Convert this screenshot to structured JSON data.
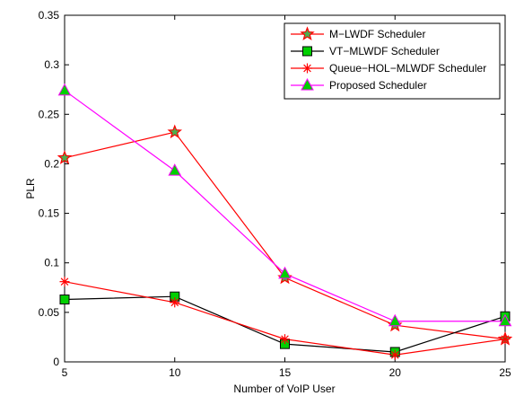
{
  "chart_data": {
    "type": "line",
    "title": "",
    "xlabel": "Number of VoIP User",
    "ylabel": "PLR",
    "x": [
      5,
      10,
      15,
      20,
      25
    ],
    "xlim": [
      5,
      25
    ],
    "ylim": [
      0,
      0.35
    ],
    "xticks": [
      "5",
      "10",
      "15",
      "20",
      "25"
    ],
    "yticks": [
      "0",
      "0.05",
      "0.1",
      "0.15",
      "0.2",
      "0.25",
      "0.3",
      "0.35"
    ],
    "grid": false,
    "legend_position": "top-right",
    "series": [
      {
        "name": "M−LWDF Scheduler",
        "values": [
          0.206,
          0.232,
          0.085,
          0.037,
          0.023
        ],
        "color": "#ff0000",
        "marker": "star",
        "marker_fill": "#4caf50"
      },
      {
        "name": "VT−MLWDF Scheduler",
        "values": [
          0.063,
          0.066,
          0.018,
          0.01,
          0.046
        ],
        "color": "#000000",
        "marker": "square",
        "marker_fill": "#00d000"
      },
      {
        "name": "Queue−HOL−MLWDF Scheduler",
        "values": [
          0.081,
          0.06,
          0.023,
          0.007,
          0.023
        ],
        "color": "#ff0000",
        "marker": "asterisk",
        "marker_fill": "#ff0000"
      },
      {
        "name": "Proposed Scheduler",
        "values": [
          0.274,
          0.193,
          0.089,
          0.041,
          0.041
        ],
        "color": "#ff00ff",
        "marker": "triangle",
        "marker_fill": "#00d000"
      }
    ]
  }
}
